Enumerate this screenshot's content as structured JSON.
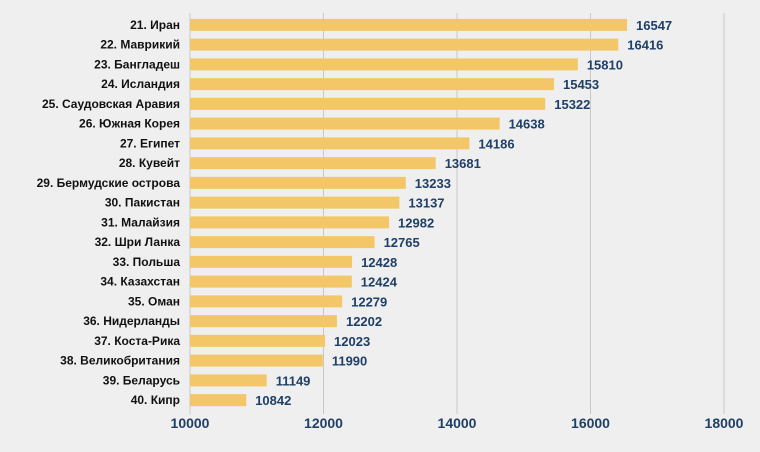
{
  "chart_data": {
    "type": "bar",
    "orientation": "horizontal",
    "categories": [
      "21. Иран",
      "22. Маврикий",
      "23. Бангладеш",
      "24. Исландия",
      "25. Саудовская Аравия",
      "26. Южная Корея",
      "27. Египет",
      "28. Кувейт",
      "29. Бермудские острова",
      "30. Пакистан",
      "31. Малайзия",
      "32. Шри Ланка",
      "33. Польша",
      "34. Казахстан",
      "35. Оман",
      "36. Нидерланды",
      "37. Коста-Рика",
      "38. Великобритания",
      "39. Беларусь",
      "40. Кипр"
    ],
    "values": [
      16547,
      16416,
      15810,
      15453,
      15322,
      14638,
      14186,
      13681,
      13233,
      13137,
      12982,
      12765,
      12428,
      12424,
      12279,
      12202,
      12023,
      11990,
      11149,
      10842
    ],
    "value_labels": [
      "16547",
      "16416",
      "15810",
      "15453",
      "15322",
      "14638",
      "14186",
      "13681",
      "13233",
      "13137",
      "12982",
      "12765",
      "12428",
      "12424",
      "12279",
      "12202",
      "12023",
      "11990",
      "11149",
      "10842"
    ],
    "xlim": [
      10000,
      18000
    ],
    "xticks": [
      10000,
      12000,
      14000,
      16000,
      18000
    ],
    "xtick_labels": [
      "10000",
      "12000",
      "14000",
      "16000",
      "18000"
    ],
    "grid": "vertical",
    "legend": "none",
    "colors": {
      "bar": "#f3c767",
      "value_text": "#1f3f66",
      "tick_text": "#1f3f66",
      "category_text": "#111111",
      "grid": "#c8c8c8",
      "background": "#efefef"
    }
  }
}
